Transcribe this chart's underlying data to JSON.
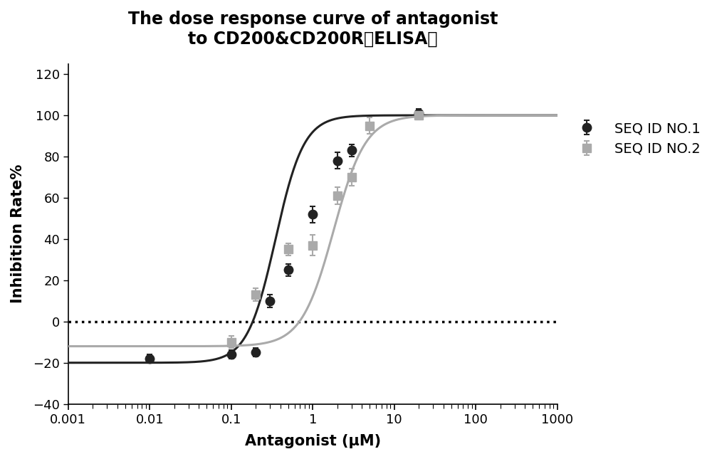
{
  "title_line1": "The dose response curve of antagonist",
  "title_line2": "to CD200&CD200R（ELISA）",
  "xlabel": "Antagonist (μM)",
  "ylabel": "Inhibition Rate%",
  "background_color": "#ffffff",
  "title_fontsize": 17,
  "label_fontsize": 15,
  "tick_fontsize": 13,
  "legend_fontsize": 14,
  "seq1_label": "SEQ ID NO.1",
  "seq2_label": "SEQ ID NO.2",
  "seq1_color": "#222222",
  "seq2_color": "#aaaaaa",
  "seq1_x": [
    0.01,
    0.1,
    0.2,
    0.3,
    0.5,
    1.0,
    2.0,
    3.0,
    20.0
  ],
  "seq1_y": [
    -18,
    -16,
    -15,
    10,
    25,
    52,
    78,
    83,
    101
  ],
  "seq1_yerr": [
    2,
    2,
    2,
    3,
    3,
    4,
    4,
    3,
    2
  ],
  "seq2_x": [
    0.1,
    0.2,
    0.5,
    1.0,
    2.0,
    3.0,
    5.0,
    20.0
  ],
  "seq2_y": [
    -10,
    13,
    35,
    37,
    61,
    70,
    95,
    100
  ],
  "seq2_yerr": [
    3,
    3,
    3,
    5,
    4,
    4,
    4,
    2
  ],
  "seq1_fit_params": [
    -20,
    100,
    0.35,
    2.5
  ],
  "seq2_fit_params": [
    -12,
    100,
    1.8,
    2.2
  ],
  "xlim": [
    0.001,
    1000
  ],
  "ylim": [
    -40,
    125
  ],
  "yticks": [
    -40,
    -20,
    0,
    20,
    40,
    60,
    80,
    100,
    120
  ],
  "dotted_line_y": 0
}
